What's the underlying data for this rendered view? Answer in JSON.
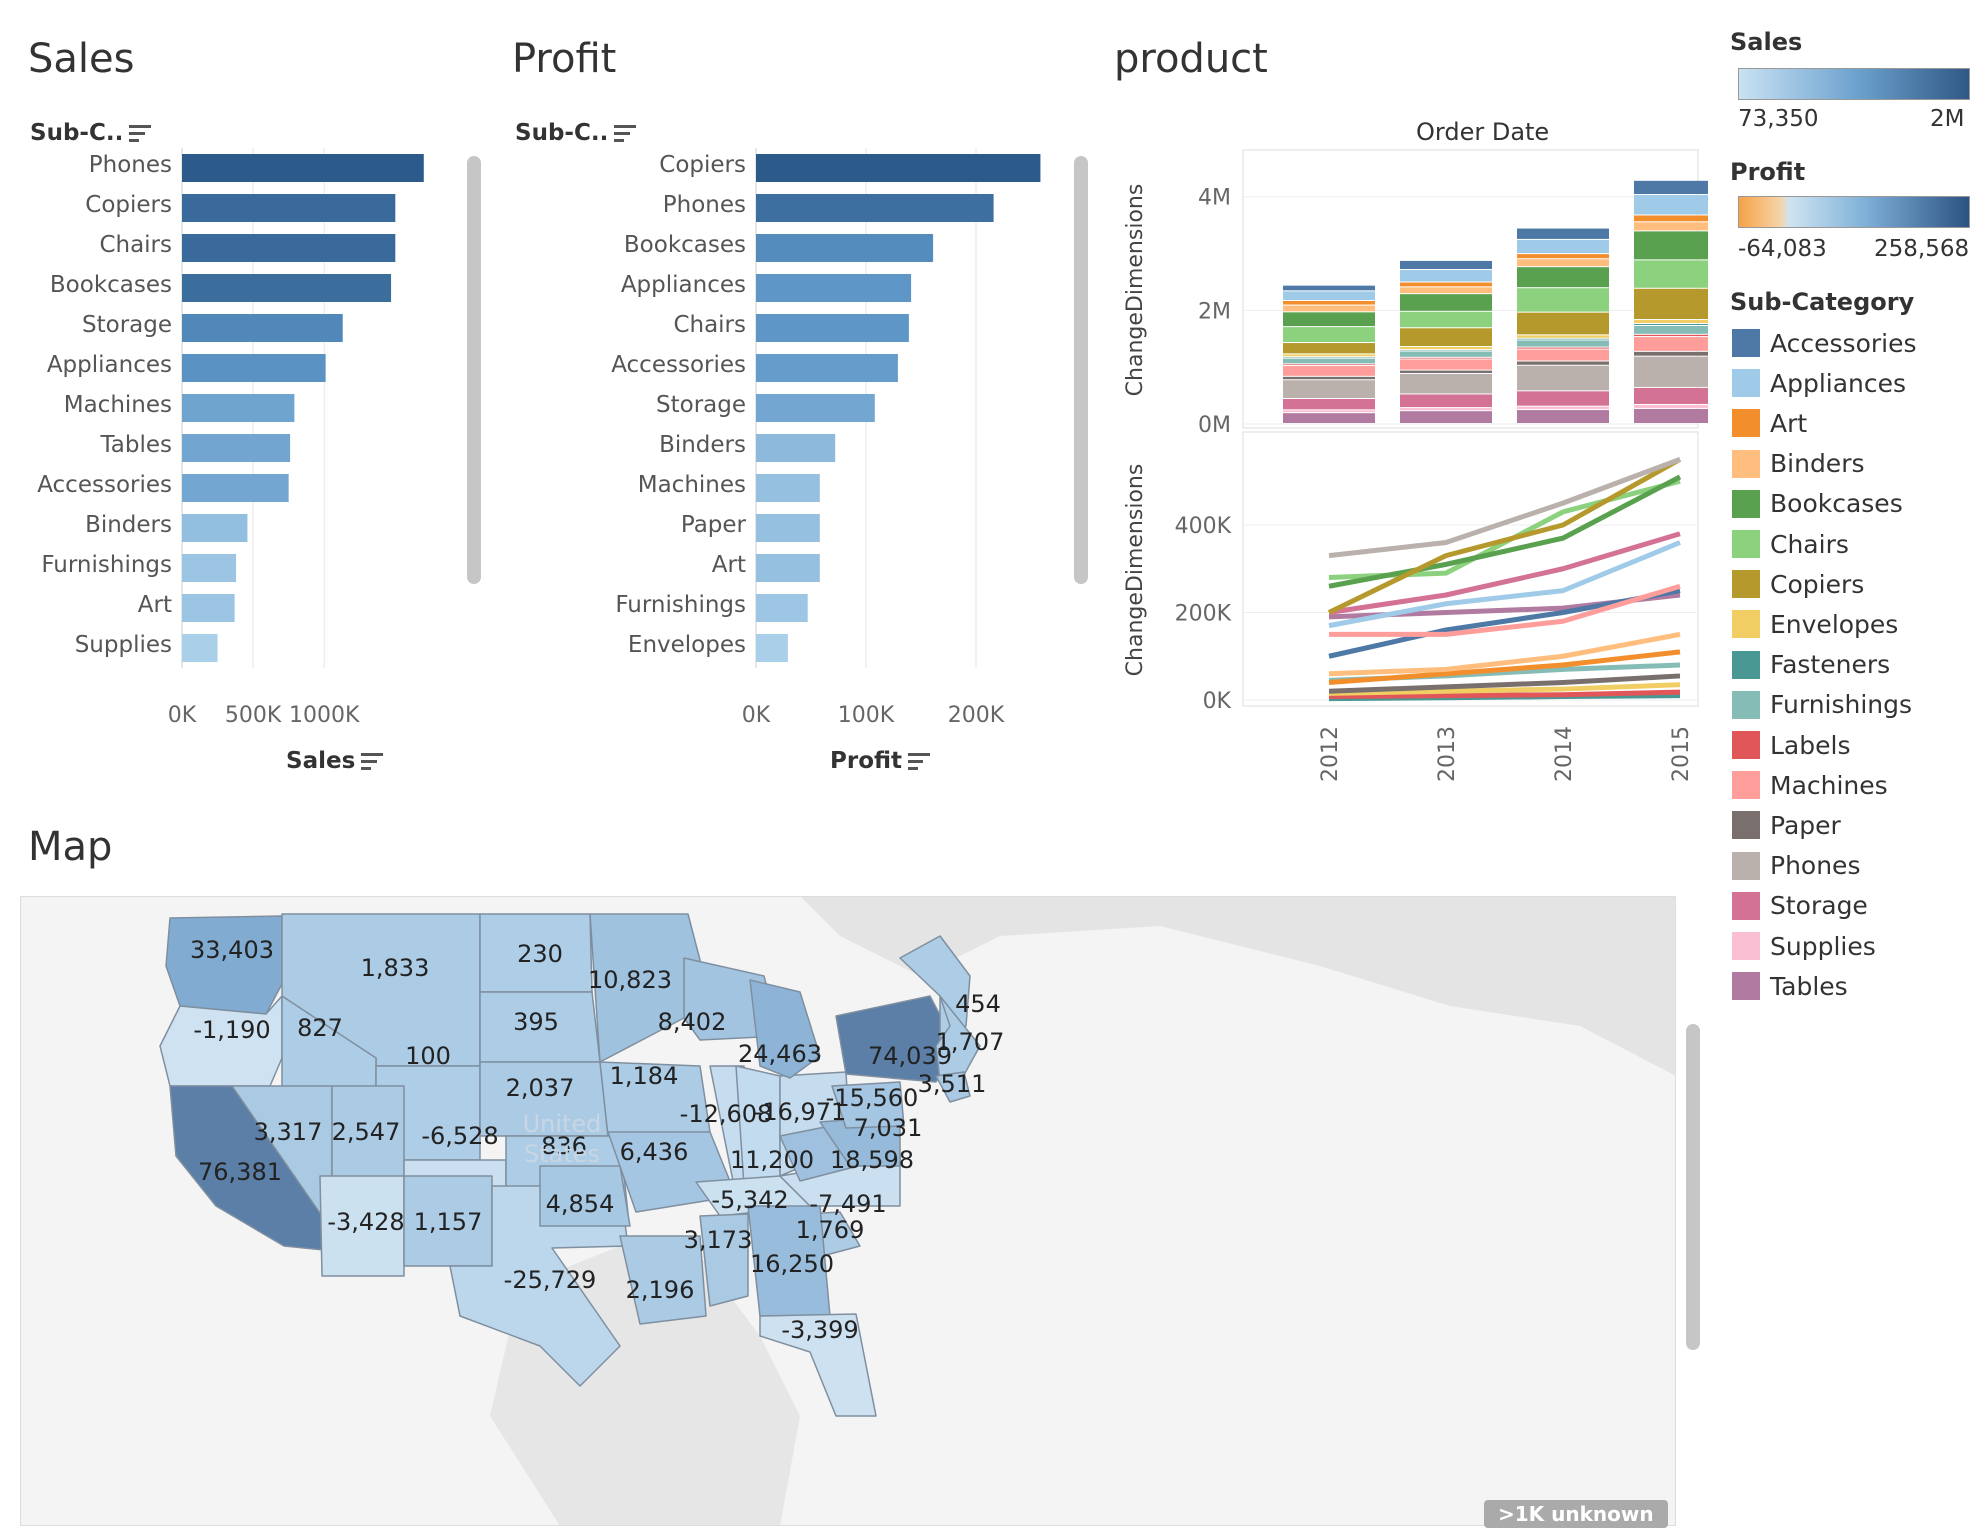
{
  "titles": {
    "sales": "Sales",
    "profit": "Profit",
    "product": "product",
    "map": "Map"
  },
  "sales_chart": {
    "row_header": "Sub-C..",
    "axis_label": "Sales",
    "sort_icon": "sort-descending-icon"
  },
  "profit_chart": {
    "row_header": "Sub-C..",
    "axis_label": "Profit",
    "sort_icon": "sort-descending-icon"
  },
  "product_chart": {
    "col_header": "Order Date",
    "y_label_top": "ChangeDimensions",
    "y_label_bottom": "ChangeDimensions"
  },
  "legends": {
    "sales": {
      "title": "Sales",
      "min": "73,350",
      "max": "2M"
    },
    "profit": {
      "title": "Profit",
      "min": "-64,083",
      "max": "258,568"
    },
    "subcategory": {
      "title": "Sub-Category",
      "items": [
        {
          "label": "Accessories",
          "color": "#4e79a7"
        },
        {
          "label": "Appliances",
          "color": "#a0cbe8"
        },
        {
          "label": "Art",
          "color": "#f28e2b"
        },
        {
          "label": "Binders",
          "color": "#ffbe7d"
        },
        {
          "label": "Bookcases",
          "color": "#59a14f"
        },
        {
          "label": "Chairs",
          "color": "#8cd17d"
        },
        {
          "label": "Copiers",
          "color": "#b6992d"
        },
        {
          "label": "Envelopes",
          "color": "#f1ce63"
        },
        {
          "label": "Fasteners",
          "color": "#499894"
        },
        {
          "label": "Furnishings",
          "color": "#86bcb6"
        },
        {
          "label": "Labels",
          "color": "#e15759"
        },
        {
          "label": "Machines",
          "color": "#ff9d9a"
        },
        {
          "label": "Paper",
          "color": "#79706e"
        },
        {
          "label": "Phones",
          "color": "#bab0ac"
        },
        {
          "label": "Storage",
          "color": "#d37295"
        },
        {
          "label": "Supplies",
          "color": "#fabfd2"
        },
        {
          "label": "Tables",
          "color": "#b07aa1"
        }
      ]
    }
  },
  "map": {
    "unknown_badge": ">1K unknown",
    "country_label_1": "United",
    "country_label_2": "States",
    "labels": [
      "33,403",
      "1,833",
      "230",
      "10,823",
      "454",
      "-1,190",
      "827",
      "395",
      "8,402",
      "100",
      "24,463",
      "74,039",
      "1,707",
      "2,037",
      "1,184",
      "3,511",
      "3,317",
      "2,547",
      "-6,528",
      "-12,608",
      "-16,971",
      "-15,560",
      "836",
      "6,436",
      "7,031",
      "76,381",
      "11,200",
      "18,598",
      "4,854",
      "-5,342",
      "-7,491",
      "-3,428",
      "1,157",
      "1,769",
      "3,173",
      "16,250",
      "-25,729",
      "2,196",
      "-3,399"
    ]
  },
  "chart_data": [
    {
      "type": "bar",
      "orientation": "horizontal",
      "title": "Sales",
      "ylabel": "Sub-C..",
      "xlabel": "Sales",
      "x_ticks": [
        "0K",
        "500K",
        "1000K"
      ],
      "xlim": [
        0,
        1800000
      ],
      "categories": [
        "Phones",
        "Copiers",
        "Chairs",
        "Bookcases",
        "Storage",
        "Appliances",
        "Machines",
        "Tables",
        "Accessories",
        "Binders",
        "Furnishings",
        "Art",
        "Supplies"
      ],
      "values": [
        1700000,
        1500000,
        1500000,
        1470000,
        1130000,
        1010000,
        790000,
        760000,
        750000,
        460000,
        380000,
        370000,
        250000
      ]
    },
    {
      "type": "bar",
      "orientation": "horizontal",
      "title": "Profit",
      "ylabel": "Sub-C..",
      "xlabel": "Profit",
      "x_ticks": [
        "0K",
        "100K",
        "200K"
      ],
      "xlim": [
        0,
        300000
      ],
      "categories": [
        "Copiers",
        "Phones",
        "Bookcases",
        "Appliances",
        "Chairs",
        "Accessories",
        "Storage",
        "Binders",
        "Machines",
        "Paper",
        "Art",
        "Furnishings",
        "Envelopes"
      ],
      "values": [
        258568,
        216000,
        161000,
        141000,
        139000,
        129000,
        108000,
        72000,
        58000,
        58000,
        58000,
        47000,
        29000
      ]
    },
    {
      "type": "bar",
      "stacked": true,
      "title": "product",
      "xlabel": "Order Date",
      "ylabel": "ChangeDimensions",
      "categories": [
        "2012",
        "2013",
        "2014",
        "2015"
      ],
      "y_ticks": [
        "0M",
        "2M",
        "4M"
      ],
      "ylim": [
        0,
        4400000
      ],
      "series": [
        {
          "name": "Tables",
          "values": [
            190000,
            225000,
            245000,
            265000
          ]
        },
        {
          "name": "Supplies",
          "values": [
            50000,
            55000,
            60000,
            70000
          ]
        },
        {
          "name": "Storage",
          "values": [
            200000,
            240000,
            270000,
            300000
          ]
        },
        {
          "name": "Phones",
          "values": [
            330000,
            360000,
            450000,
            550000
          ]
        },
        {
          "name": "Paper",
          "values": [
            60000,
            60000,
            75000,
            85000
          ]
        },
        {
          "name": "Machines",
          "values": [
            190000,
            195000,
            210000,
            260000
          ]
        },
        {
          "name": "Labels",
          "values": [
            30000,
            30000,
            35000,
            40000
          ]
        },
        {
          "name": "Furnishings",
          "values": [
            100000,
            110000,
            125000,
            155000
          ]
        },
        {
          "name": "Fasteners",
          "values": [
            25000,
            25000,
            30000,
            35000
          ]
        },
        {
          "name": "Envelopes",
          "values": [
            50000,
            55000,
            60000,
            70000
          ]
        },
        {
          "name": "Copiers",
          "values": [
            200000,
            330000,
            400000,
            550000
          ]
        },
        {
          "name": "Chairs",
          "values": [
            280000,
            290000,
            430000,
            500000
          ]
        },
        {
          "name": "Bookcases",
          "values": [
            260000,
            310000,
            370000,
            510000
          ]
        },
        {
          "name": "Binders",
          "values": [
            120000,
            120000,
            140000,
            160000
          ]
        },
        {
          "name": "Art",
          "values": [
            80000,
            85000,
            90000,
            120000
          ]
        },
        {
          "name": "Appliances",
          "values": [
            170000,
            220000,
            250000,
            360000
          ]
        },
        {
          "name": "Accessories",
          "values": [
            100000,
            160000,
            200000,
            250000
          ]
        }
      ]
    },
    {
      "type": "line",
      "xlabel": "Order Date",
      "ylabel": "ChangeDimensions",
      "x": [
        "2012",
        "2013",
        "2014",
        "2015"
      ],
      "y_ticks": [
        "0K",
        "200K",
        "400K"
      ],
      "ylim": [
        0,
        560000
      ],
      "series": [
        {
          "name": "Phones",
          "values": [
            330000,
            360000,
            450000,
            550000
          ]
        },
        {
          "name": "Copiers",
          "values": [
            200000,
            330000,
            400000,
            550000
          ]
        },
        {
          "name": "Bookcases",
          "values": [
            260000,
            310000,
            370000,
            510000
          ]
        },
        {
          "name": "Chairs",
          "values": [
            280000,
            290000,
            430000,
            500000
          ]
        },
        {
          "name": "Storage",
          "values": [
            200000,
            240000,
            300000,
            380000
          ]
        },
        {
          "name": "Appliances",
          "values": [
            170000,
            220000,
            250000,
            360000
          ]
        },
        {
          "name": "Machines",
          "values": [
            150000,
            150000,
            180000,
            260000
          ]
        },
        {
          "name": "Accessories",
          "values": [
            100000,
            160000,
            200000,
            250000
          ]
        },
        {
          "name": "Tables",
          "values": [
            190000,
            200000,
            210000,
            240000
          ]
        },
        {
          "name": "Binders",
          "values": [
            60000,
            70000,
            100000,
            150000
          ]
        },
        {
          "name": "Art",
          "values": [
            40000,
            60000,
            80000,
            110000
          ]
        },
        {
          "name": "Furnishings",
          "values": [
            45000,
            55000,
            70000,
            80000
          ]
        },
        {
          "name": "Paper",
          "values": [
            20000,
            30000,
            40000,
            55000
          ]
        },
        {
          "name": "Envelopes",
          "values": [
            15000,
            20000,
            25000,
            35000
          ]
        },
        {
          "name": "Labels",
          "values": [
            8000,
            10000,
            12000,
            18000
          ]
        },
        {
          "name": "Fasteners",
          "values": [
            3000,
            5000,
            8000,
            10000
          ]
        }
      ]
    }
  ]
}
